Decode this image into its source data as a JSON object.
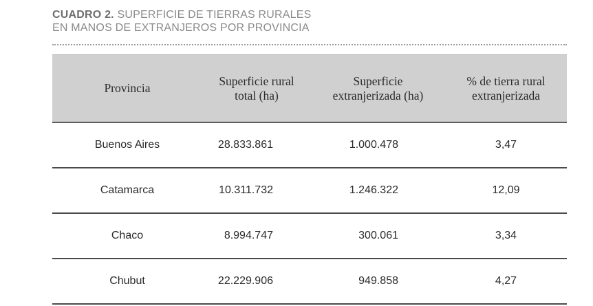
{
  "caption": {
    "label": "CUADRO 2.",
    "line1": "SUPERFICIE DE TIERRAS RURALES",
    "line2": "EN MANOS DE EXTRANJEROS POR PROVINCIA"
  },
  "table": {
    "headers": [
      [
        "Provincia"
      ],
      [
        "Superficie rural",
        "total (ha)"
      ],
      [
        "Superficie",
        "extranjerizada (ha)"
      ],
      [
        "% de tierra rural",
        "extranjerizada"
      ]
    ],
    "rows": [
      [
        "Buenos Aires",
        "28.833.861",
        "1.000.478",
        "3,47"
      ],
      [
        "Catamarca",
        "10.311.732",
        "1.246.322",
        "12,09"
      ],
      [
        "Chaco",
        "8.994.747",
        "300.061",
        "3,34"
      ],
      [
        "Chubut",
        "22.229.906",
        "949.858",
        "4,27"
      ]
    ]
  }
}
